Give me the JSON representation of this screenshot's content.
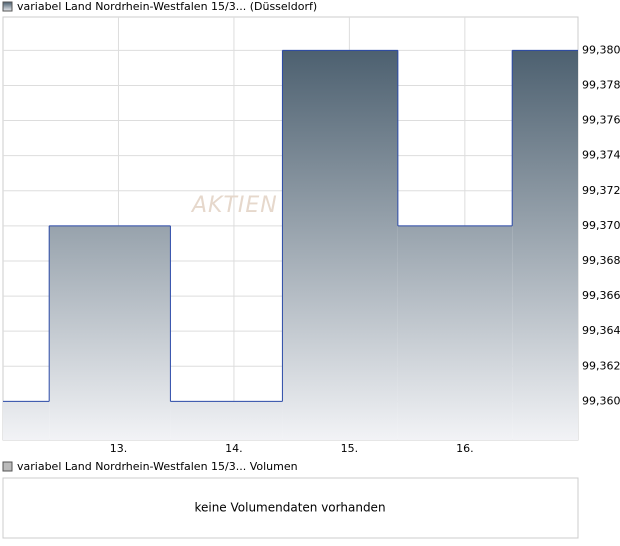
{
  "chart_data": {
    "type": "step-area",
    "series": [
      {
        "name": "variabel Land Nordrhein-Westfalen 15/3... (Düsseldorf)",
        "color": "#2b4aa8",
        "x": [
          12.0,
          12.4,
          13.45,
          14.42,
          15.42,
          16.41
        ],
        "values": [
          99.36,
          99.37,
          99.36,
          99.38,
          99.37,
          99.38
        ]
      }
    ],
    "xlim": [
      12.0,
      16.98
    ],
    "xticks": [
      {
        "value": 13,
        "label": "13."
      },
      {
        "value": 14,
        "label": "14."
      },
      {
        "value": 15,
        "label": "15."
      },
      {
        "value": 16,
        "label": "16."
      }
    ],
    "ylim": [
      99.3578,
      99.3819
    ],
    "yticks": [
      {
        "value": 99.36,
        "label": "99,360"
      },
      {
        "value": 99.362,
        "label": "99,362"
      },
      {
        "value": 99.364,
        "label": "99,364"
      },
      {
        "value": 99.366,
        "label": "99,366"
      },
      {
        "value": 99.368,
        "label": "99,368"
      },
      {
        "value": 99.37,
        "label": "99,370"
      },
      {
        "value": 99.372,
        "label": "99,372"
      },
      {
        "value": 99.374,
        "label": "99,374"
      },
      {
        "value": 99.376,
        "label": "99,376"
      },
      {
        "value": 99.378,
        "label": "99,378"
      },
      {
        "value": 99.38,
        "label": "99,380"
      }
    ],
    "grid": true,
    "watermark": "AKTIEN"
  },
  "volume_panel": {
    "legend": "variabel Land Nordrhein-Westfalen 15/3... Volumen",
    "message": "keine Volumendaten vorhanden"
  }
}
